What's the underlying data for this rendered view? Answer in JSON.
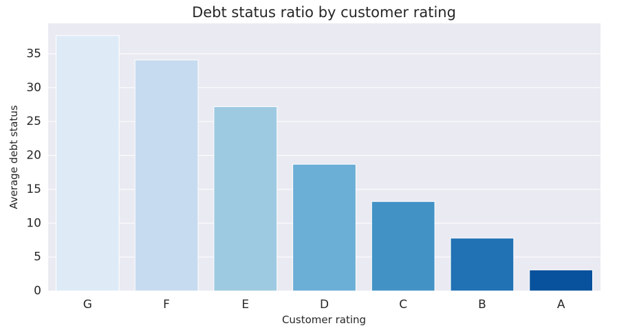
{
  "chart_data": {
    "type": "bar",
    "title": "Debt status ratio by customer rating",
    "xlabel": "Customer rating",
    "ylabel": "Average debt status",
    "categories": [
      "G",
      "F",
      "E",
      "D",
      "C",
      "B",
      "A"
    ],
    "values": [
      37.7,
      34.1,
      27.2,
      18.7,
      13.2,
      7.8,
      3.1
    ],
    "ylim": [
      0,
      39.5
    ],
    "yticks": [
      0,
      5,
      10,
      15,
      20,
      25,
      30,
      35
    ],
    "grid": true,
    "colors": {
      "background": "#eaeaf2",
      "grid": "#ffffff",
      "bars": [
        "#deebf7",
        "#c6dbef",
        "#9ecae1",
        "#6baed6",
        "#4292c6",
        "#2171b5",
        "#08519c"
      ]
    }
  }
}
